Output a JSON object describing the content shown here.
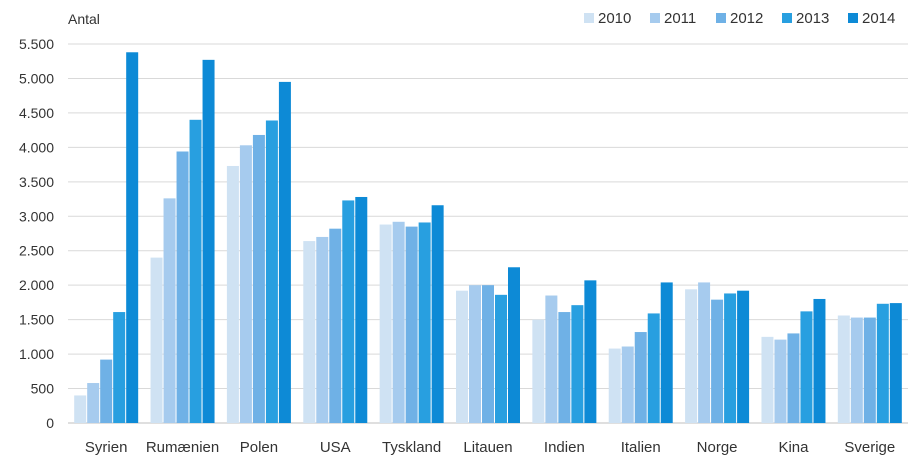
{
  "chart_data": {
    "type": "bar",
    "title": "",
    "ylabel": "Antal",
    "xlabel": "",
    "ylim": [
      0,
      5500
    ],
    "yticks": [
      0,
      500,
      1000,
      1500,
      2000,
      2500,
      3000,
      3500,
      4000,
      4500,
      5000,
      5500
    ],
    "ytick_labels": [
      "0",
      "500",
      "1.000",
      "1.500",
      "2.000",
      "2.500",
      "3.000",
      "3.500",
      "4.000",
      "4.500",
      "5.000",
      "5.500"
    ],
    "grid": true,
    "legend_position": "top-right",
    "categories": [
      "Syrien",
      "Rumænien",
      "Polen",
      "USA",
      "Tyskland",
      "Litauen",
      "Indien",
      "Italien",
      "Norge",
      "Kina",
      "Sverige"
    ],
    "series": [
      {
        "name": "2010",
        "color": "#cfe2f3",
        "values": [
          400,
          2400,
          3730,
          2640,
          2880,
          1920,
          1500,
          1080,
          1940,
          1250,
          1560
        ]
      },
      {
        "name": "2011",
        "color": "#a6cbee",
        "values": [
          580,
          3260,
          4030,
          2700,
          2920,
          2000,
          1850,
          1110,
          2040,
          1210,
          1530
        ]
      },
      {
        "name": "2012",
        "color": "#6fb1e6",
        "values": [
          920,
          3940,
          4180,
          2820,
          2850,
          2000,
          1610,
          1320,
          1790,
          1300,
          1530
        ]
      },
      {
        "name": "2013",
        "color": "#289fe0",
        "values": [
          1610,
          4400,
          4390,
          3230,
          2910,
          1860,
          1710,
          1590,
          1880,
          1620,
          1730
        ]
      },
      {
        "name": "2014",
        "color": "#0d8ad6",
        "values": [
          5380,
          5270,
          4950,
          3280,
          3160,
          2260,
          2070,
          2040,
          1920,
          1800,
          1740
        ]
      }
    ]
  }
}
